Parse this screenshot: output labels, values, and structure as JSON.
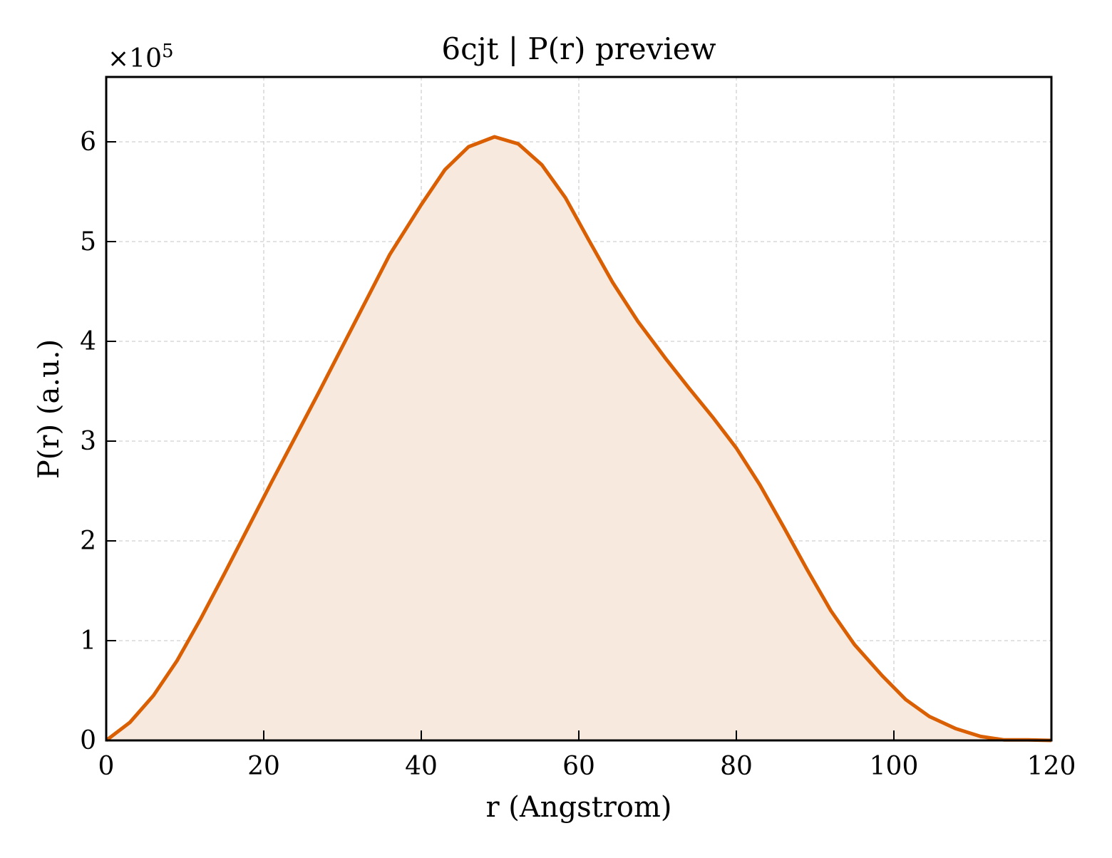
{
  "chart_data": {
    "type": "area",
    "title": "6cjt | P(r) preview",
    "xlabel": "r (Angstrom)",
    "ylabel": "P(r) (a.u.)",
    "y_multiplier": {
      "base": "×10",
      "exponent": "5"
    },
    "xlim": [
      0,
      120
    ],
    "ylim": [
      0,
      6.65
    ],
    "xticks": [
      0,
      20,
      40,
      60,
      80,
      100,
      120
    ],
    "yticks": [
      0,
      1,
      2,
      3,
      4,
      5,
      6
    ],
    "grid": true,
    "colors": {
      "line": "#d95f02",
      "fill": "#f8e9de",
      "grid": "#d0d0d0",
      "axis": "#000000"
    },
    "series": [
      {
        "x": [
          0,
          3,
          6,
          9,
          12,
          15,
          18,
          21,
          24,
          27,
          30,
          33,
          36,
          40,
          43,
          46,
          49.3,
          52.3,
          55.3,
          58.3,
          61.3,
          64.3,
          67.5,
          71,
          74,
          77,
          80,
          83,
          86,
          89,
          92,
          95,
          98.5,
          101.5,
          104.5,
          107.8,
          111,
          114,
          117,
          120
        ],
        "y": [
          0,
          0.18,
          0.45,
          0.8,
          1.22,
          1.67,
          2.13,
          2.59,
          3.04,
          3.49,
          3.95,
          4.41,
          4.87,
          5.37,
          5.72,
          5.95,
          6.05,
          5.98,
          5.77,
          5.44,
          5.01,
          4.59,
          4.2,
          3.83,
          3.53,
          3.24,
          2.93,
          2.56,
          2.14,
          1.71,
          1.3,
          0.96,
          0.65,
          0.41,
          0.24,
          0.12,
          0.04,
          0.005,
          0.005,
          0
        ]
      }
    ]
  }
}
